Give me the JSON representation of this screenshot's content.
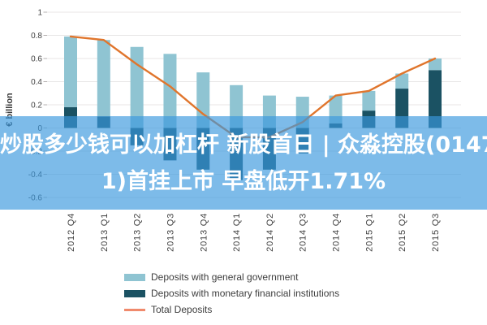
{
  "banner": {
    "line1": "炒股多少钱可以加杠杆 新股首日 | 众淼控股(0147",
    "line2": "1)首挂上市 早盘低开1.71%",
    "full_text": "炒股多少钱可以加杠杆 新股首日 | 众淼控股(01471)首挂上市 早盘低开1.71%",
    "background": "#3a98de",
    "opacity": 0.66,
    "text_color": "#ffffff"
  },
  "chart_data": {
    "type": "bar",
    "subtype": "stacked-bars-with-total-line",
    "title": "",
    "xlabel": "",
    "ylabel": "€ billion",
    "categories": [
      "2012 Q4",
      "2013 Q1",
      "2013 Q2",
      "2013 Q3",
      "2013 Q4",
      "2014 Q1",
      "2014 Q2",
      "2014 Q3",
      "2014 Q4",
      "2015 Q1",
      "2015 Q2",
      "2015 Q3"
    ],
    "series": [
      {
        "name": "Deposits with general government",
        "type": "bar",
        "color": "#8fc4d2",
        "values": [
          0.61,
          0.66,
          0.7,
          0.64,
          0.48,
          0.37,
          0.28,
          0.27,
          0.24,
          0.17,
          0.13,
          0.1
        ]
      },
      {
        "name": "Deposits with monetary financial institutions",
        "type": "bar",
        "color": "#1b5263",
        "values": [
          0.18,
          0.1,
          -0.15,
          -0.28,
          -0.36,
          -0.45,
          -0.36,
          -0.22,
          0.04,
          0.15,
          0.34,
          0.5
        ]
      },
      {
        "name": "Total Deposits",
        "type": "line",
        "color": "#e0752c",
        "legend_color": "#f08a6c",
        "values": [
          0.79,
          0.76,
          0.55,
          0.36,
          0.12,
          -0.08,
          -0.08,
          0.05,
          0.28,
          0.32,
          0.47,
          0.6
        ]
      }
    ],
    "stacked": true,
    "ylim": [
      -0.6,
      1.0
    ],
    "yticks": [
      1,
      0.8,
      0.6,
      0.4,
      0.2,
      0,
      -0.2,
      -0.4,
      -0.6
    ],
    "grid": true,
    "grid_color": "#e8e6e6",
    "tick_color": "#b5b0b0",
    "axis_text_color": "#404040",
    "legend_position": "bottom"
  }
}
